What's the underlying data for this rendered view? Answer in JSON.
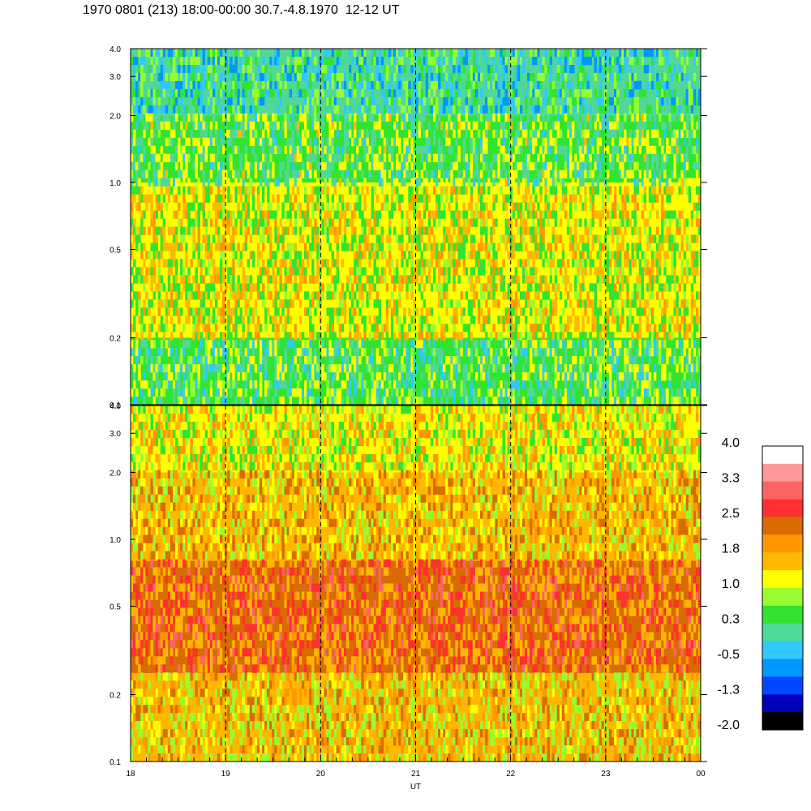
{
  "title": "1970 0801 (213) 18:00-00:00 30.7.-4.8.1970  12-12 UT",
  "chart_data": {
    "type": "heatmap",
    "title": "1970 0801 (213) 18:00-00:00 30.7.-4.8.1970  12-12 UT",
    "xlabel": "UT",
    "x_ticks": [
      "18",
      "19",
      "20",
      "21",
      "22",
      "23",
      "00"
    ],
    "x_range": [
      18,
      24
    ],
    "y_scale": "log",
    "y_ticks": [
      "0.1",
      "0.2",
      "0.5",
      "1.0",
      "2.0",
      "3.0",
      "4.0"
    ],
    "y_tick_values": [
      0.1,
      0.2,
      0.5,
      1.0,
      2.0,
      3.0,
      4.0
    ],
    "y_range": [
      0.1,
      4.0
    ],
    "dashed_hour_lines": [
      19,
      20,
      21,
      22,
      23
    ],
    "panels": [
      {
        "name": "upper",
        "note_levels": {
          "0.1-0.2": 0.5,
          "0.2-1.0": 1.1,
          "1.0-2.0": 0.6,
          "2.0-4.0": 0.1
        }
      },
      {
        "name": "lower",
        "note_levels": {
          "0.1-0.25": 1.5,
          "0.25-0.8": 2.2,
          "0.8-2.0": 1.6,
          "2.0-4.0": 1.2
        }
      }
    ],
    "colorbar": {
      "labels": [
        "4.0",
        "3.3",
        "2.5",
        "1.8",
        "1.0",
        "0.3",
        "-0.5",
        "-1.3",
        "-2.0"
      ],
      "range": [
        -2.0,
        4.0
      ],
      "colors": [
        "#ffffff",
        "#ff9898",
        "#ff6464",
        "#ff3030",
        "#d86c00",
        "#ff9800",
        "#ffb800",
        "#ffff00",
        "#98fc30",
        "#30e430",
        "#50d898",
        "#30c8ff",
        "#0098ff",
        "#0048ff",
        "#0000b8",
        "#000000"
      ]
    }
  }
}
